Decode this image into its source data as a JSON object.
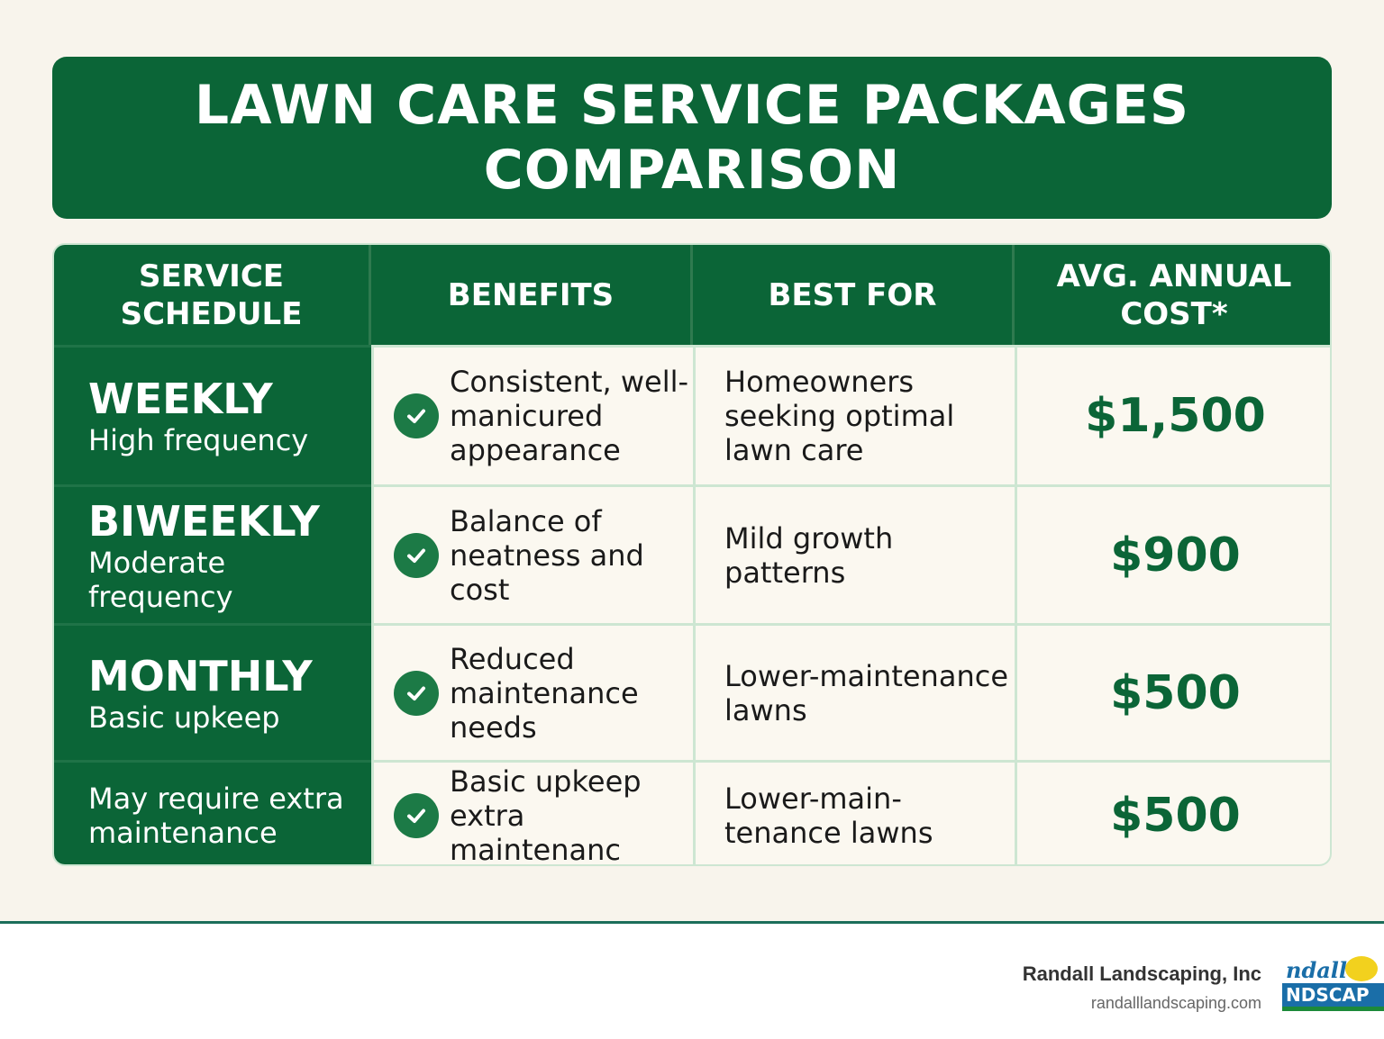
{
  "title": "LAWN CARE SERVICE PACKAGES COMPARISON",
  "headers": [
    "SERVICE SCHEDULE",
    "BENEFITS",
    "BEST FOR",
    "AVG. ANNUAL COST*"
  ],
  "rows": [
    {
      "name": "WEEKLY",
      "subtitle": "High frequency",
      "benefit": "Consistent, well-manicured appearance",
      "best_for": "Homeowners seeking optimal lawn care",
      "cost": "$1,500"
    },
    {
      "name": "BIWEEKLY",
      "subtitle": "Moderate frequency",
      "benefit": "Balance of neatness and cost",
      "best_for": "Mild growth patterns",
      "cost": "$900"
    },
    {
      "name": "MONTHLY",
      "subtitle": "Basic upkeep",
      "benefit": "Reduced maintenance needs",
      "best_for": "Lower-maintenance lawns",
      "cost": "$500"
    },
    {
      "name": "",
      "subtitle": "May require extra maintenance",
      "benefit": "Basic upkeep extra maintenanc",
      "best_for": "Lower-main-tenance lawns",
      "cost": "$500"
    }
  ],
  "footer": {
    "company": "Randall Landscaping, Inc",
    "url": "randalllandscaping.com"
  },
  "colors": {
    "primary_green": "#0b6537",
    "background": "#f8f4ec",
    "grid_line": "#cde6d2"
  },
  "icons": {
    "benefit": "check-circle-icon"
  }
}
